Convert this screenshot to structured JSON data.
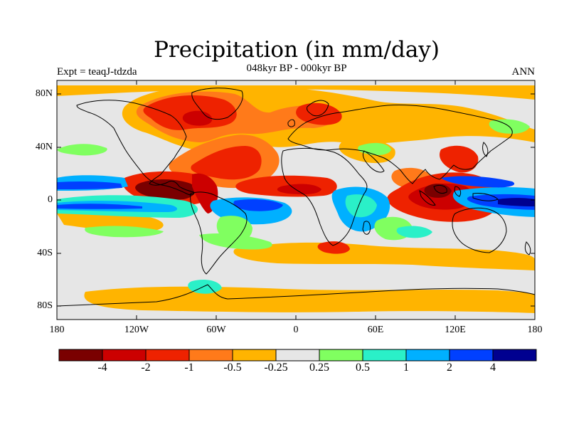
{
  "map": {
    "title": "Precipitation (in mm/day)",
    "subtitle": "048kyr BP - 000kyr BP",
    "experiment": "Expt = teaqJ-tdzda",
    "season": "ANN",
    "lat_labels": [
      "80N",
      "40N",
      "0",
      "40S",
      "80S"
    ],
    "lon_labels": [
      "180",
      "120W",
      "60W",
      "0",
      "60E",
      "120E",
      "180"
    ],
    "background_color": "#e6e6e6",
    "coastline_color": "#000000"
  },
  "colorbar": {
    "colors": [
      "#7a0000",
      "#cc0000",
      "#ee2200",
      "#ff7a1a",
      "#ffb400",
      "#e6e6e6",
      "#80ff60",
      "#2af0c8",
      "#00b0ff",
      "#0040ff",
      "#000090"
    ],
    "tick_labels": [
      "-4",
      "-2",
      "-1",
      "-0.5",
      "-0.25",
      "0.25",
      "0.5",
      "1",
      "2",
      "4"
    ]
  }
}
